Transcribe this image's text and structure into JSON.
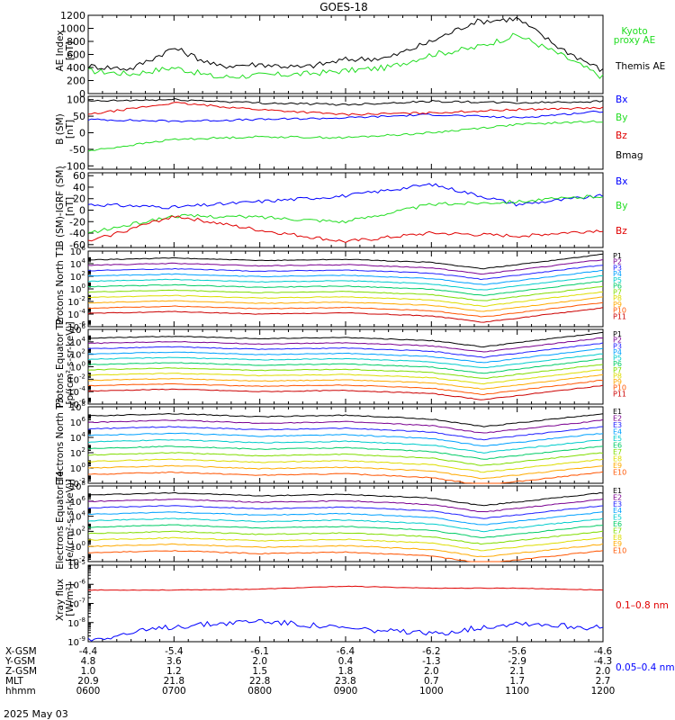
{
  "title": "GOES-18",
  "date_label": "2025 May 03",
  "colors": {
    "black": "#000000",
    "red": "#e00000",
    "green": "#22dd22",
    "blue": "#0000ff",
    "channels": [
      "#000000",
      "#7a0090",
      "#2020ff",
      "#00a0ff",
      "#00cccc",
      "#00cc66",
      "#80dd00",
      "#dddd00",
      "#ffaa00",
      "#ff5500",
      "#cc0000"
    ]
  },
  "chart_data": [
    {
      "type": "line",
      "panel": "ae",
      "ylabel": "AE Index [nT]",
      "ylim": [
        0,
        1200
      ],
      "yticks": [
        0,
        200,
        400,
        600,
        800,
        1000,
        1200
      ],
      "ytick_labels": [
        "0",
        "200",
        "400",
        "600",
        "800",
        "1000",
        "1200"
      ],
      "legend": [
        "Kyoto proxy AE",
        "Themis AE"
      ],
      "series": [
        {
          "name": "Kyoto proxy AE",
          "color": "green",
          "x": [
            0,
            0.5,
            1,
            1.5,
            2,
            2.5,
            3,
            3.5,
            4,
            4.5,
            5,
            5.5,
            6
          ],
          "y": [
            350,
            300,
            400,
            250,
            280,
            300,
            350,
            400,
            600,
            700,
            900,
            600,
            250
          ]
        },
        {
          "name": "Themis AE",
          "color": "black",
          "x": [
            0,
            0.5,
            1,
            1.5,
            2,
            2.5,
            3,
            3.5,
            4,
            4.5,
            5,
            5.5,
            6
          ],
          "y": [
            420,
            380,
            700,
            420,
            450,
            400,
            520,
            550,
            800,
            1100,
            1150,
            700,
            350
          ]
        }
      ]
    },
    {
      "type": "line",
      "panel": "b",
      "ylabel": "B (SM) [nT]",
      "ylim": [
        -110,
        110
      ],
      "yticks": [
        -100,
        -50,
        0,
        50,
        100
      ],
      "ytick_labels": [
        "-100",
        "-50",
        "0",
        "50",
        "100"
      ],
      "legend": [
        "Bx",
        "By",
        "Bz",
        "Bmag"
      ],
      "series": [
        {
          "name": "Bx",
          "color": "blue",
          "x": [
            0,
            1,
            2,
            3,
            4,
            5,
            6
          ],
          "y": [
            40,
            35,
            40,
            45,
            55,
            45,
            65
          ]
        },
        {
          "name": "By",
          "color": "green",
          "x": [
            0,
            1,
            2,
            3,
            4,
            5,
            6
          ],
          "y": [
            -55,
            -20,
            -12,
            -15,
            0,
            25,
            35
          ]
        },
        {
          "name": "Bz",
          "color": "red",
          "x": [
            0,
            1,
            2,
            3,
            4,
            5,
            6
          ],
          "y": [
            55,
            90,
            70,
            55,
            60,
            70,
            75
          ]
        },
        {
          "name": "Bmag",
          "color": "black",
          "x": [
            0,
            1,
            2,
            3,
            4,
            5,
            6
          ],
          "y": [
            95,
            100,
            90,
            85,
            95,
            90,
            95
          ]
        }
      ]
    },
    {
      "type": "line",
      "panel": "b_igrf",
      "ylabel": "B (SM)-IGRF (SM) [nT]",
      "ylim": [
        -65,
        65
      ],
      "yticks": [
        -60,
        -40,
        -20,
        0,
        20,
        40,
        60
      ],
      "ytick_labels": [
        "-60",
        "-40",
        "-20",
        "0",
        "20",
        "40",
        "60"
      ],
      "legend": [
        "Bx",
        "By",
        "Bz"
      ],
      "series": [
        {
          "name": "Bx",
          "color": "blue",
          "x": [
            0,
            1,
            2,
            3,
            4,
            5,
            6
          ],
          "y": [
            10,
            5,
            15,
            25,
            45,
            10,
            25
          ]
        },
        {
          "name": "By",
          "color": "green",
          "x": [
            0,
            1,
            2,
            3,
            4,
            5,
            6
          ],
          "y": [
            -40,
            -10,
            -12,
            -20,
            10,
            15,
            25
          ]
        },
        {
          "name": "Bz",
          "color": "red",
          "x": [
            0,
            1,
            2,
            3,
            4,
            5,
            6
          ],
          "y": [
            -55,
            -10,
            -35,
            -55,
            -40,
            -45,
            -35
          ]
        }
      ]
    },
    {
      "type": "line",
      "panel": "protons_north",
      "ylabel": "Protons North T1",
      "yscale": "log",
      "ylim_exp": [
        -6,
        6
      ],
      "tick_exps": [
        -6,
        -4,
        -2,
        0,
        2,
        4,
        6
      ],
      "legend": [
        "P1",
        "P2",
        "P3",
        "P4",
        "P5",
        "P6",
        "P7",
        "P8",
        "P9",
        "P10",
        "P11"
      ]
    },
    {
      "type": "line",
      "panel": "protons_equator",
      "ylabel": "Protons Equator T2 [p/(cm²-s-sr-keV)]",
      "yscale": "log",
      "ylim_exp": [
        -6,
        6
      ],
      "tick_exps": [
        -6,
        -4,
        -2,
        0,
        2,
        4,
        6
      ],
      "legend": [
        "P1",
        "P2",
        "P3",
        "P4",
        "P5",
        "P6",
        "P7",
        "P8",
        "P9",
        "P10",
        "P11"
      ]
    },
    {
      "type": "line",
      "panel": "electrons_north",
      "ylabel": "Electrons North T3",
      "yscale": "log",
      "ylim_exp": [
        -2,
        8
      ],
      "tick_exps": [
        -2,
        0,
        2,
        4,
        6,
        8
      ],
      "legend": [
        "E1",
        "E2",
        "E3",
        "E4",
        "E5",
        "E6",
        "E7",
        "E8",
        "E9",
        "E10"
      ]
    },
    {
      "type": "line",
      "panel": "electrons_equator",
      "ylabel": "Electrons Equator T4 [e/(cm²-s-sr-keV)]",
      "yscale": "log",
      "ylim_exp": [
        -2,
        8
      ],
      "tick_exps": [
        -2,
        0,
        2,
        4,
        6,
        8
      ],
      "legend": [
        "E1",
        "E2",
        "E3",
        "E4",
        "E5",
        "E6",
        "E7",
        "E8",
        "E9",
        "E10"
      ]
    },
    {
      "type": "line",
      "panel": "xray",
      "ylabel": "Xray flux [W/m²]",
      "yscale": "log",
      "ylim_exp": [
        -9,
        -5
      ],
      "tick_exps": [
        -9,
        -8,
        -7,
        -6,
        -5
      ],
      "legend": [
        "0.1–0.8 nm",
        "0.05–0.4 nm"
      ],
      "series": [
        {
          "name": "0.1–0.8 nm",
          "color": "red",
          "x": [
            0,
            1,
            2,
            3,
            4,
            5,
            6
          ],
          "y_exp": [
            -6.3,
            -6.3,
            -6.25,
            -6.1,
            -6.2,
            -6.2,
            -6.3
          ]
        },
        {
          "name": "0.05–0.4 nm",
          "color": "blue",
          "x": [
            0,
            1,
            2,
            3,
            4,
            5,
            6
          ],
          "y_exp": [
            -8.9,
            -8.2,
            -7.9,
            -8.3,
            -8.6,
            -8.0,
            -8.3
          ]
        }
      ]
    }
  ],
  "time_axis": {
    "row_labels": [
      "X-GSM",
      "Y-GSM",
      "Z-GSM",
      "MLT",
      "hhmm"
    ],
    "columns": [
      [
        "-4.4",
        "4.8",
        "1.0",
        "20.9",
        "0600"
      ],
      [
        "-5.4",
        "3.6",
        "1.2",
        "21.8",
        "0700"
      ],
      [
        "-6.1",
        "2.0",
        "1.5",
        "22.8",
        "0800"
      ],
      [
        "-6.4",
        "0.4",
        "1.8",
        "23.8",
        "0900"
      ],
      [
        "-6.2",
        "-1.3",
        "2.0",
        "0.7",
        "1000"
      ],
      [
        "-5.6",
        "-2.9",
        "2.1",
        "1.7",
        "1100"
      ],
      [
        "-4.6",
        "-4.3",
        "2.0",
        "2.7",
        "1200"
      ]
    ]
  }
}
